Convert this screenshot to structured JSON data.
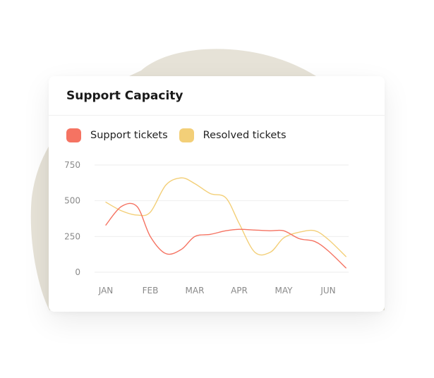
{
  "card": {
    "title": "Support Capacity"
  },
  "colors": {
    "support": "#f57362",
    "resolved": "#f3cf78",
    "blob": "#e6e2d7",
    "grid": "#eeeeee"
  },
  "chart_data": {
    "type": "line",
    "title": "Support Capacity",
    "categories": [
      "JAN",
      "FEB",
      "MAR",
      "APR",
      "MAY",
      "JUN"
    ],
    "y_ticks": [
      0,
      250,
      500,
      750
    ],
    "ylim": [
      0,
      750
    ],
    "grid": true,
    "legend_position": "top-left",
    "series": [
      {
        "name": "Support tickets",
        "x": [
          0,
          0.35,
          0.7,
          1.0,
          1.35,
          1.7,
          2.0,
          2.35,
          2.7,
          3.0,
          3.35,
          3.7,
          4.0,
          4.35,
          4.7,
          5.0,
          5.4
        ],
        "values": [
          330,
          460,
          460,
          250,
          130,
          160,
          250,
          265,
          290,
          300,
          295,
          290,
          290,
          235,
          215,
          150,
          30
        ]
      },
      {
        "name": "Resolved tickets",
        "x": [
          0,
          0.35,
          0.7,
          1.0,
          1.35,
          1.7,
          2.0,
          2.35,
          2.7,
          3.0,
          3.35,
          3.7,
          4.0,
          4.35,
          4.7,
          5.0,
          5.4
        ],
        "values": [
          490,
          430,
          400,
          420,
          610,
          660,
          620,
          550,
          520,
          340,
          140,
          140,
          240,
          280,
          290,
          230,
          110
        ]
      }
    ]
  }
}
